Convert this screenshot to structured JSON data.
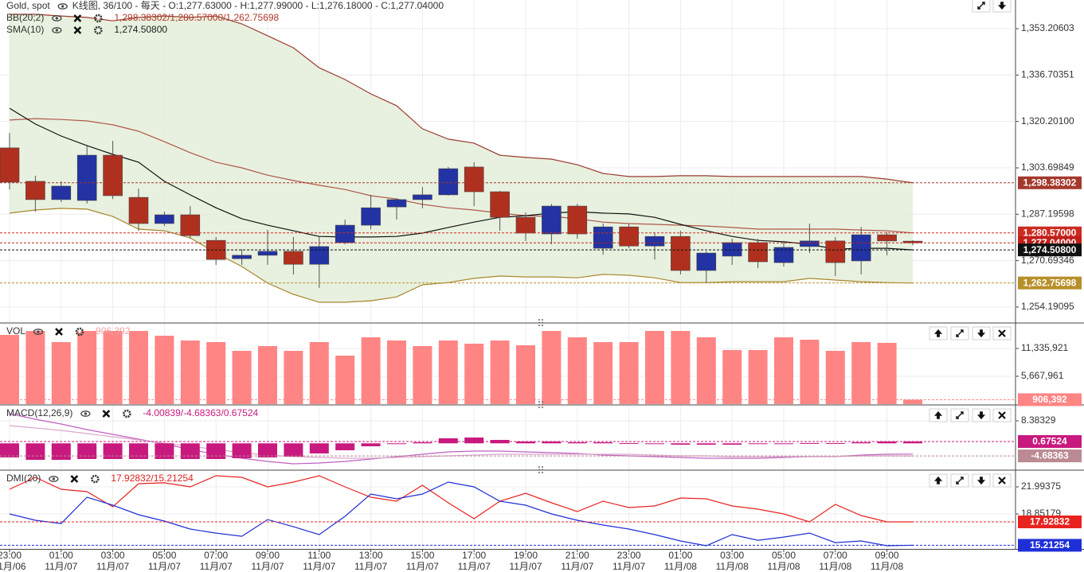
{
  "chart_data": [
    {
      "type": "candlestick",
      "title": "Gold, spot",
      "subtitle": "K线图, 36/100 - 每天 - O:1,277.63000 - H:1,277.99000 - L:1,276.18000 - C:1,277.04000",
      "categories": [
        "23:00",
        null,
        "01:00",
        null,
        "03:00",
        null,
        "05:00",
        null,
        "07:00",
        null,
        "09:00",
        null,
        "11:00",
        null,
        "13:00",
        null,
        "15:00",
        null,
        "17:00",
        null,
        "19:00",
        null,
        "21:00",
        null,
        "23:00",
        null,
        "01:00",
        null,
        "03:00",
        null,
        "05:00",
        null,
        "07:00",
        null,
        "09:00",
        null
      ],
      "category_dates": [
        "11月/06",
        null,
        "11月/07",
        null,
        "11月/07",
        null,
        "11月/07",
        null,
        "11月/07",
        null,
        "11月/07",
        null,
        "11月/07",
        null,
        "11月/07",
        null,
        "11月/07",
        null,
        "11月/07",
        null,
        "11月/07",
        null,
        "11月/07",
        null,
        "11月/07",
        null,
        "11月/08",
        null,
        "11月/08",
        null,
        "11月/08",
        null,
        "11月/08",
        null,
        "11月/08",
        null
      ],
      "open": [
        1310.8,
        1298.9,
        1292.4,
        1292.1,
        1308.2,
        1293.2,
        1283.9,
        1287.0,
        1277.9,
        1271.4,
        1272.6,
        1274.0,
        1269.4,
        1277.1,
        1283.3,
        1289.8,
        1292.4,
        1294.1,
        1304.0,
        1295.2,
        1286.1,
        1280.2,
        1290.1,
        1275.1,
        1282.7,
        1275.9,
        1279.3,
        1267.2,
        1272.3,
        1277.1,
        1270.0,
        1275.7,
        1277.7,
        1270.6,
        1279.9,
        1277.63
      ],
      "high": [
        1316.1,
        1300.9,
        1298.9,
        1311.9,
        1313.3,
        1296.3,
        1288.1,
        1290.1,
        1279.1,
        1274.8,
        1281.6,
        1279.1,
        1279.1,
        1285.3,
        1294.1,
        1292.9,
        1296.9,
        1304.0,
        1305.7,
        1295.5,
        1287.8,
        1290.9,
        1290.9,
        1283.9,
        1283.9,
        1280.5,
        1281.3,
        1274.0,
        1278.5,
        1278.5,
        1277.7,
        1283.9,
        1279.1,
        1282.7,
        1280.8,
        1277.99
      ],
      "low": [
        1296.0,
        1288.1,
        1291.5,
        1291.0,
        1292.6,
        1281.3,
        1283.0,
        1278.5,
        1269.2,
        1269.2,
        1269.2,
        1265.8,
        1261.0,
        1276.5,
        1281.9,
        1285.3,
        1289.3,
        1293.8,
        1290.1,
        1281.3,
        1277.7,
        1276.5,
        1278.5,
        1272.8,
        1275.1,
        1271.1,
        1265.8,
        1262.7,
        1269.2,
        1268.0,
        1268.6,
        1273.4,
        1265.2,
        1265.8,
        1272.6,
        1276.18
      ],
      "close": [
        1298.6,
        1292.4,
        1297.2,
        1308.2,
        1293.8,
        1283.9,
        1287.0,
        1279.6,
        1271.1,
        1272.6,
        1274.0,
        1269.4,
        1275.7,
        1283.3,
        1289.5,
        1292.4,
        1294.1,
        1303.4,
        1295.2,
        1286.1,
        1280.5,
        1290.1,
        1280.2,
        1282.7,
        1275.9,
        1279.3,
        1267.2,
        1273.4,
        1277.1,
        1270.3,
        1275.4,
        1277.7,
        1270.0,
        1279.9,
        1277.7,
        1277.04
      ],
      "up_color": "#2333a3",
      "down_color": "#b0301f",
      "ylim": [
        1248.8,
        1363.4
      ],
      "yticks": [
        {
          "value": 1353.20603,
          "label": "1,353.20603"
        },
        {
          "value": 1336.70351,
          "label": "1,336.70351"
        },
        {
          "value": 1320.201,
          "label": "1,320.20100"
        },
        {
          "value": 1303.69849,
          "label": "1,303.69849"
        },
        {
          "value": 1287.19598,
          "label": "1,287.19598"
        },
        {
          "value": 1270.69346,
          "label": "1,270.69346"
        },
        {
          "value": 1254.19095,
          "label": "1,254.19095"
        }
      ],
      "grid": true,
      "indicators": [
        {
          "name": "BB(20;2)",
          "readout": "1,298.38302/1,280.57000/1,262.75698",
          "readout_color": "#b03a2a",
          "fill": "#e4efd9",
          "lines": [
            {
              "color": "#9c3b2f",
              "values": [
                1358.3,
                1358.3,
                1357.7,
                1357.2,
                1356.0,
                1357.2,
                1357.7,
                1357.2,
                1357.7,
                1354.9,
                1350.7,
                1346.4,
                1339.3,
                1335.1,
                1330.0,
                1325.8,
                1317.6,
                1313.9,
                1312.5,
                1308.2,
                1307.4,
                1306.8,
                1304.8,
                1301.7,
                1300.6,
                1300.6,
                1300.9,
                1300.9,
                1300.6,
                1300.6,
                1300.6,
                1300.6,
                1300.6,
                1300.6,
                1299.7,
                1298.38302
              ]
            },
            {
              "color": "#b0574a",
              "values": [
                1320.7,
                1321.2,
                1320.9,
                1320.4,
                1319.0,
                1316.7,
                1313.0,
                1309.1,
                1305.7,
                1303.7,
                1301.1,
                1299.2,
                1297.5,
                1296.0,
                1293.8,
                1292.6,
                1290.7,
                1289.5,
                1288.7,
                1287.6,
                1286.7,
                1286.4,
                1285.6,
                1284.4,
                1283.9,
                1283.6,
                1283.3,
                1283.0,
                1282.5,
                1281.9,
                1281.9,
                1281.9,
                1281.9,
                1281.6,
                1281.3,
                1280.57
              ]
            },
            {
              "color": "#a8862a",
              "values": [
                1287.6,
                1288.7,
                1289.3,
                1289.0,
                1286.4,
                1281.9,
                1281.3,
                1278.8,
                1273.4,
                1268.6,
                1262.7,
                1258.7,
                1255.9,
                1255.9,
                1256.4,
                1257.8,
                1262.1,
                1262.9,
                1264.4,
                1265.2,
                1264.9,
                1264.9,
                1264.6,
                1265.8,
                1265.5,
                1264.6,
                1262.9,
                1262.9,
                1263.2,
                1263.2,
                1263.2,
                1264.4,
                1263.8,
                1263.2,
                1262.9,
                1262.75698
              ]
            }
          ]
        },
        {
          "name": "SMA(10)",
          "readout": "1,274.50800",
          "readout_color": "#222222",
          "lines": [
            {
              "color": "#111111",
              "values": [
                1324.9,
                1319.3,
                1315.0,
                1311.6,
                1308.5,
                1305.7,
                1298.9,
                1294.1,
                1289.5,
                1285.6,
                1283.3,
                1281.3,
                1279.3,
                1279.1,
                1279.1,
                1279.3,
                1280.5,
                1282.5,
                1284.4,
                1286.1,
                1286.7,
                1287.6,
                1288.1,
                1287.6,
                1287.3,
                1286.1,
                1283.6,
                1281.3,
                1279.3,
                1277.9,
                1277.4,
                1276.5,
                1274.8,
                1275.1,
                1275.1,
                1274.508
              ]
            }
          ]
        }
      ],
      "markers": [
        {
          "value": 1298.38302,
          "label": "1,298.38302",
          "color": "#a3392c"
        },
        {
          "value": 1280.57,
          "label": "1,280.57000",
          "color": "#cc2b22"
        },
        {
          "value": 1277.04,
          "label": "1,277.04000",
          "color": "#c0201a"
        },
        {
          "value": 1274.508,
          "label": "1,274.50800",
          "color": "#111111"
        },
        {
          "value": 1262.75698,
          "label": "1,262.75698",
          "color": "#b8902a"
        }
      ]
    },
    {
      "type": "bar",
      "name": "VOL",
      "readout": "906,392",
      "readout_color": "#f4a0a0",
      "color": "#ff8585",
      "values": [
        14089000,
        14899000,
        12632000,
        14899000,
        14899000,
        14899000,
        13927000,
        12955000,
        12632000,
        10850000,
        11822000,
        10850000,
        12632000,
        9878000,
        13603000,
        12955000,
        11822000,
        12955000,
        12308000,
        12955000,
        11984000,
        14899000,
        13603000,
        12632000,
        12632000,
        14899000,
        14899000,
        13603000,
        11012000,
        11012000,
        13603000,
        13117000,
        10850000,
        12632000,
        12470000,
        906392
      ],
      "ylim": [
        0,
        16356000
      ],
      "yticks": [
        {
          "value": 11335921,
          "label": "11,335,921"
        },
        {
          "value": 5667961,
          "label": "5,667,961"
        }
      ],
      "markers": [
        {
          "value": 906392,
          "label": "906,392",
          "color": "#ff8585"
        }
      ]
    },
    {
      "type": "macd",
      "name": "MACD(12,26,9)",
      "readout": "-4.00839/-4.68363/0.67524",
      "readout_color": "#c8197e",
      "color": "#c8197e",
      "values": [
        -5.25,
        -6.14,
        -6.14,
        -5.84,
        -5.84,
        -5.84,
        -5.84,
        -5.84,
        -5.84,
        -5.54,
        -5.25,
        -4.95,
        -3.77,
        -2.58,
        -1.1,
        -0.21,
        0.39,
        1.87,
        2.16,
        1.27,
        0.68,
        0.68,
        0.39,
        0.39,
        0.09,
        -0.21,
        -0.5,
        -0.5,
        -0.5,
        -0.21,
        -0.21,
        0.09,
        0.09,
        0.39,
        0.68,
        0.67524
      ],
      "lines": [
        {
          "color": "#c060c0",
          "values": [
            11.04,
            8.96,
            7.19,
            5.11,
            3.34,
            1.56,
            -0.22,
            -2.29,
            -4.07,
            -5.55,
            -6.74,
            -7.63,
            -7.33,
            -6.74,
            -5.85,
            -4.96,
            -4.07,
            -3.19,
            -2.89,
            -2.89,
            -3.19,
            -3.48,
            -3.78,
            -4.37,
            -4.66,
            -4.96,
            -5.26,
            -5.55,
            -5.55,
            -5.55,
            -5.26,
            -4.96,
            -4.96,
            -4.37,
            -4.07,
            -4.00839
          ]
        },
        {
          "color": "#dba8cc",
          "values": [
            6.59,
            5.71,
            4.82,
            3.63,
            2.45,
            1.26,
            0.08,
            -1.11,
            -2.29,
            -3.48,
            -4.37,
            -4.96,
            -5.26,
            -5.55,
            -5.55,
            -5.26,
            -4.96,
            -4.66,
            -4.37,
            -4.07,
            -4.07,
            -4.07,
            -4.07,
            -4.07,
            -4.07,
            -4.37,
            -4.66,
            -4.66,
            -4.96,
            -4.96,
            -4.96,
            -4.96,
            -4.96,
            -4.66,
            -4.66,
            -4.68363
          ]
        }
      ],
      "ylim": [
        -9.7,
        14.0
      ],
      "yticks": [
        8.38329
      ],
      "markers": [
        {
          "value": 0.67524,
          "label": "0.67524",
          "color": "#c8197e"
        },
        {
          "value": -4.68363,
          "label": "-4.68363",
          "color": "#bb8a92"
        }
      ]
    },
    {
      "type": "line",
      "name": "DMI(20)",
      "readout": "17.92832/15.21254",
      "readout_color": "#e02020",
      "series": [
        {
          "color": "#e8231f",
          "values": [
            21.72,
            23.1,
            21.72,
            21.44,
            19.68,
            22.36,
            22.46,
            21.99,
            23.29,
            23.1,
            21.99,
            22.55,
            23.29,
            21.99,
            20.79,
            20.33,
            22.18,
            20.15,
            18.3,
            20.33,
            21.25,
            20.15,
            19.13,
            20.33,
            19.59,
            19.78,
            20.7,
            20.61,
            19.78,
            19.41,
            18.85,
            17.93,
            19.96,
            18.67,
            17.93,
            17.92832
          ]
        },
        {
          "color": "#1f2fd8",
          "values": [
            18.85,
            18.11,
            17.74,
            20.79,
            19.87,
            18.76,
            18.02,
            17.1,
            16.63,
            16.26,
            18.2,
            17.37,
            16.45,
            18.58,
            21.16,
            20.61,
            21.16,
            22.55,
            21.99,
            20.33,
            19.87,
            18.85,
            18.11,
            17.56,
            17.1,
            16.45,
            15.71,
            15.16,
            16.45,
            15.8,
            16.17,
            16.63,
            15.52,
            15.71,
            15.16,
            15.21254
          ]
        }
      ],
      "ylim": [
        14.79,
        23.84
      ],
      "yticks": [
        21.99375,
        18.85179
      ],
      "markers": [
        {
          "value": 17.92832,
          "label": "17.92832",
          "color": "#e8231f"
        },
        {
          "value": 15.21254,
          "label": "15.21254",
          "color": "#1f2fd8"
        }
      ]
    }
  ]
}
